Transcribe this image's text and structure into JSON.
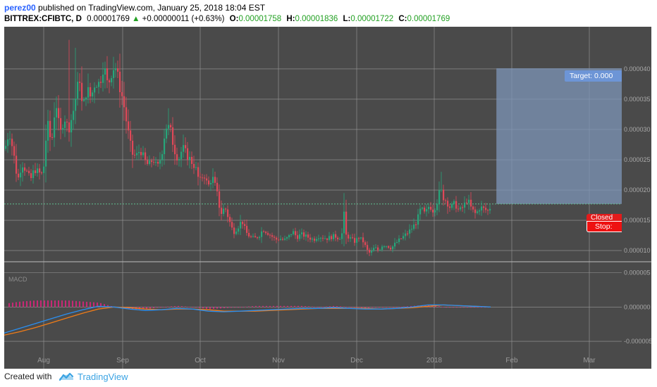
{
  "header": {
    "author": "perez00",
    "published": "published on TradingView.com, January 25, 2018 18:04 EST",
    "symbol": "BITTREX:CFIBTC, D",
    "price": "0.00001769",
    "change_arrow": "▲",
    "change": "+0.00000011 (+0.63%)",
    "o_label": "O:",
    "o_value": "0.00001758",
    "h_label": "H:",
    "h_value": "0.00001836",
    "l_label": "L:",
    "l_value": "0.00001722",
    "c_label": "C:",
    "c_value": "0.00001769"
  },
  "footer": {
    "created_with": "Created with",
    "brand": "TradingView",
    "logo_icon": "tradingview-cloud-icon"
  },
  "position": {
    "target_label": "Target: 0.000",
    "closed_label": "Closed",
    "stop_label": "Stop: "
  },
  "colors": {
    "background": "#4a4a4a",
    "grid": "#9a9a9a",
    "up": "#26a67a",
    "down": "#e04858",
    "macd": "#2b8ff0",
    "signal": "#f07c18",
    "histogram": "#d6267a",
    "zone": "#7e96b8"
  },
  "chart_data": [
    {
      "type": "candlestick",
      "description_label": "",
      "x_ticks": [
        "Aug",
        "Sep",
        "Oct",
        "Nov",
        "Dec",
        "2018",
        "Feb",
        "Mar"
      ],
      "y_ticks": [
        "0.000040",
        "0.000035",
        "0.000030",
        "0.000025",
        "0.000020",
        "0.000015",
        "0.000010"
      ],
      "y_range": [
        8.5e-06,
        4.65e-05
      ],
      "close_path": [
        [
          0,
          2.68e-05
        ],
        [
          6,
          2.98e-05
        ],
        [
          12,
          2.62e-05
        ],
        [
          18,
          2.15e-05
        ],
        [
          24,
          2.45e-05
        ],
        [
          30,
          2.32e-05
        ],
        [
          36,
          2.16e-05
        ],
        [
          42,
          2.35e-05
        ],
        [
          48,
          2.28e-05
        ],
        [
          54,
          2.25e-05
        ],
        [
          60,
          3.12e-05
        ],
        [
          66,
          2.75e-05
        ],
        [
          72,
          3.5e-05
        ],
        [
          78,
          2.9e-05
        ],
        [
          84,
          3.22e-05
        ],
        [
          90,
          3e-05
        ],
        [
          96,
          3.25e-05
        ],
        [
          102,
          3.65e-05
        ],
        [
          106,
          3.85e-05
        ],
        [
          110,
          3.3e-05
        ],
        [
          116,
          3.68e-05
        ],
        [
          122,
          3.52e-05
        ],
        [
          128,
          3.8e-05
        ],
        [
          134,
          3.75e-05
        ],
        [
          140,
          4.08e-05
        ],
        [
          146,
          3.7e-05
        ],
        [
          150,
          3.92e-05
        ],
        [
          156,
          4.08e-05
        ],
        [
          162,
          3.75e-05
        ],
        [
          168,
          3.45e-05
        ],
        [
          174,
          3e-05
        ],
        [
          180,
          2.6e-05
        ],
        [
          186,
          2.55e-05
        ],
        [
          192,
          2.68e-05
        ],
        [
          198,
          2.48e-05
        ],
        [
          204,
          2.4e-05
        ],
        [
          210,
          2.52e-05
        ],
        [
          216,
          2.35e-05
        ],
        [
          222,
          2.58e-05
        ],
        [
          228,
          3.05e-05
        ],
        [
          234,
          3.02e-05
        ],
        [
          240,
          2.68e-05
        ],
        [
          246,
          2.5e-05
        ],
        [
          252,
          2.7e-05
        ],
        [
          258,
          2.58e-05
        ],
        [
          264,
          2.48e-05
        ],
        [
          270,
          2.38e-05
        ],
        [
          276,
          2.12e-05
        ],
        [
          282,
          2.28e-05
        ],
        [
          288,
          2.05e-05
        ],
        [
          294,
          2.22e-05
        ],
        [
          300,
          2e-05
        ],
        [
          306,
          1.6e-05
        ],
        [
          312,
          1.72e-05
        ],
        [
          318,
          1.5e-05
        ],
        [
          324,
          1.3e-05
        ],
        [
          330,
          1.38e-05
        ],
        [
          336,
          1.5e-05
        ],
        [
          342,
          1.3e-05
        ],
        [
          348,
          1.22e-05
        ],
        [
          354,
          1.2e-05
        ],
        [
          360,
          1.24e-05
        ],
        [
          366,
          1.35e-05
        ],
        [
          372,
          1.3e-05
        ],
        [
          378,
          1.24e-05
        ],
        [
          384,
          1.18e-05
        ],
        [
          390,
          1.2e-05
        ],
        [
          396,
          1.17e-05
        ],
        [
          402,
          1.22e-05
        ],
        [
          408,
          1.32e-05
        ],
        [
          414,
          1.22e-05
        ],
        [
          420,
          1.27e-05
        ],
        [
          426,
          1.24e-05
        ],
        [
          432,
          1.21e-05
        ],
        [
          438,
          1.18e-05
        ],
        [
          444,
          1.24e-05
        ],
        [
          450,
          1.22e-05
        ],
        [
          456,
          1.2e-05
        ],
        [
          462,
          1.22e-05
        ],
        [
          468,
          1.24e-05
        ],
        [
          474,
          1.2e-05
        ],
        [
          478,
          1.28e-05
        ],
        [
          481,
          1.6e-05
        ],
        [
          484,
          1.25e-05
        ],
        [
          490,
          1.2e-05
        ],
        [
          496,
          1.15e-05
        ],
        [
          502,
          1.22e-05
        ],
        [
          508,
          1.15e-05
        ],
        [
          514,
          1e-05
        ],
        [
          518,
          9.5e-06
        ],
        [
          524,
          1.05e-05
        ],
        [
          530,
          1e-05
        ],
        [
          536,
          1.1e-05
        ],
        [
          542,
          1.08e-05
        ],
        [
          548,
          1.04e-05
        ],
        [
          554,
          1.12e-05
        ],
        [
          560,
          1.18e-05
        ],
        [
          566,
          1.24e-05
        ],
        [
          572,
          1.3e-05
        ],
        [
          578,
          1.38e-05
        ],
        [
          584,
          1.48e-05
        ],
        [
          590,
          1.7e-05
        ],
        [
          596,
          1.6e-05
        ],
        [
          602,
          1.75e-05
        ],
        [
          608,
          1.65e-05
        ],
        [
          614,
          1.85e-05
        ],
        [
          618,
          2.05e-05
        ],
        [
          620,
          1.9e-05
        ],
        [
          626,
          1.82e-05
        ],
        [
          632,
          1.7e-05
        ],
        [
          638,
          1.78e-05
        ],
        [
          644,
          1.65e-05
        ],
        [
          650,
          1.72e-05
        ],
        [
          656,
          1.85e-05
        ],
        [
          662,
          1.68e-05
        ],
        [
          668,
          1.6e-05
        ],
        [
          674,
          1.72e-05
        ],
        [
          680,
          1.68e-05
        ],
        [
          686,
          1.65e-05
        ],
        [
          690,
          1.77e-05
        ]
      ],
      "position": {
        "target_level": 4.01e-05,
        "entry_level": 1.77e-05,
        "stop_level": 1.77e-05,
        "zone_start_fraction": 0.797
      },
      "last_price": 1.769e-05
    },
    {
      "type": "line",
      "panel": "MACD",
      "label": "MACD",
      "series": [
        {
          "name": "MACD",
          "y": [
            -3.8e-06,
            -3.1e-06,
            -2.4e-06,
            -1.7e-06,
            -1e-06,
            -4e-07,
            1e-07,
            0.0,
            -3e-07,
            -5e-07,
            -4e-07,
            -2e-07,
            -3e-07,
            -6e-07,
            -7e-07,
            -6e-07,
            -5e-07,
            -4e-07,
            -3e-07,
            -2e-07,
            -2e-07,
            -1e-07,
            -2e-07,
            -3e-07,
            -3e-07,
            -2e-07,
            0.0,
            3e-07,
            3e-07,
            2e-07,
            1e-07,
            0.0
          ]
        },
        {
          "name": "Signal",
          "y": [
            -4.1e-06,
            -3.6e-06,
            -3e-06,
            -2.3e-06,
            -1.6e-06,
            -9e-07,
            -3e-07,
            0.0,
            -1e-07,
            -3e-07,
            -4e-07,
            -3e-07,
            -3e-07,
            -4e-07,
            -6e-07,
            -6e-07,
            -6e-07,
            -5e-07,
            -4e-07,
            -3e-07,
            -2e-07,
            -2e-07,
            -2e-07,
            -2e-07,
            -3e-07,
            -2e-07,
            -1e-07,
            1e-07,
            3e-07,
            2e-07,
            1e-07,
            0.0
          ]
        }
      ],
      "y_ticks": [
        "0.000005",
        "0.000000",
        "-0.000005"
      ],
      "y_range": [
        -9e-06,
        6.5e-06
      ]
    }
  ]
}
